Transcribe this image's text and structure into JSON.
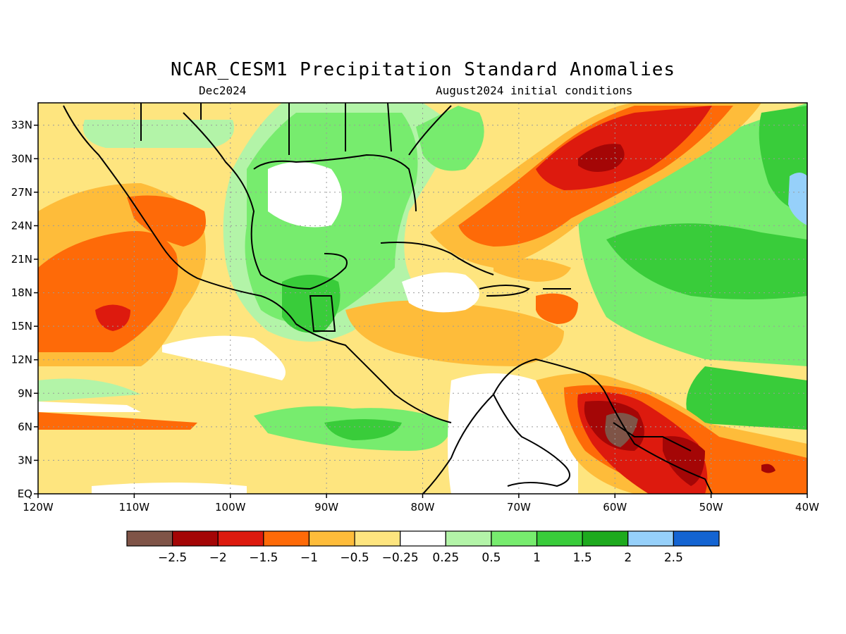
{
  "title": "NCAR_CESM1 Precipitation Standard Anomalies",
  "subtitle_left": "Dec2024",
  "subtitle_right": "August2024 initial conditions",
  "map": {
    "lon_range": [
      -120,
      -40
    ],
    "lat_range": [
      0,
      35
    ],
    "grid": "dotted",
    "lon_ticks": [
      "120W",
      "110W",
      "100W",
      "90W",
      "80W",
      "70W",
      "60W",
      "50W",
      "40W"
    ],
    "lat_ticks": [
      "EQ",
      "3N",
      "6N",
      "9N",
      "12N",
      "15N",
      "18N",
      "21N",
      "24N",
      "27N",
      "30N",
      "33N"
    ]
  },
  "colorbar": {
    "colors": [
      "#7f5447",
      "#a40606",
      "#dd1a0e",
      "#fe6a08",
      "#febc3a",
      "#fee57f",
      "#ffffff",
      "#b3f4a8",
      "#77ec6e",
      "#39cc3a",
      "#1eaa1e",
      "#96d0fa",
      "#1464d2"
    ],
    "labels": [
      "−2.5",
      "−2",
      "−1.5",
      "−1",
      "−0.5",
      "−0.25",
      "0.25",
      "0.5",
      "1",
      "1.5",
      "2",
      "2.5"
    ]
  }
}
